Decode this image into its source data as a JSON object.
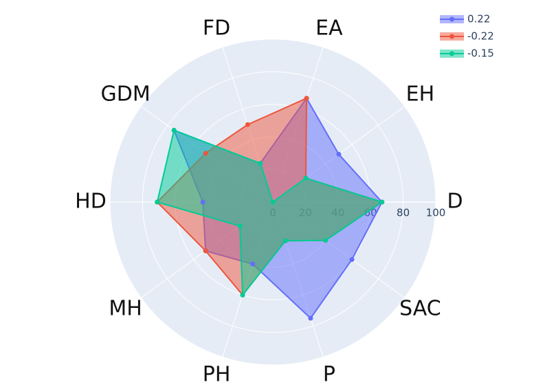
{
  "chart_data": {
    "type": "radar",
    "categories": [
      "D",
      "EH",
      "EA",
      "FD",
      "GDM",
      "HD",
      "MH",
      "PH",
      "P",
      "SAC"
    ],
    "series": [
      {
        "name": "0.22",
        "color": "#636efa",
        "values": [
          67,
          50,
          67,
          25,
          75,
          43,
          51,
          40,
          75,
          60
        ]
      },
      {
        "name": "-0.22",
        "color": "#ef553b",
        "values": [
          67,
          25,
          67,
          50,
          51,
          71,
          51,
          60,
          25,
          40
        ]
      },
      {
        "name": "-0.15",
        "color": "#00cc96",
        "values": [
          67,
          25,
          0,
          25,
          75,
          71,
          25,
          60,
          25,
          40
        ]
      }
    ],
    "rlim": [
      0,
      100
    ],
    "rticks": [
      0,
      20,
      40,
      60,
      80,
      100
    ],
    "grid": true,
    "legend": "top-right"
  }
}
